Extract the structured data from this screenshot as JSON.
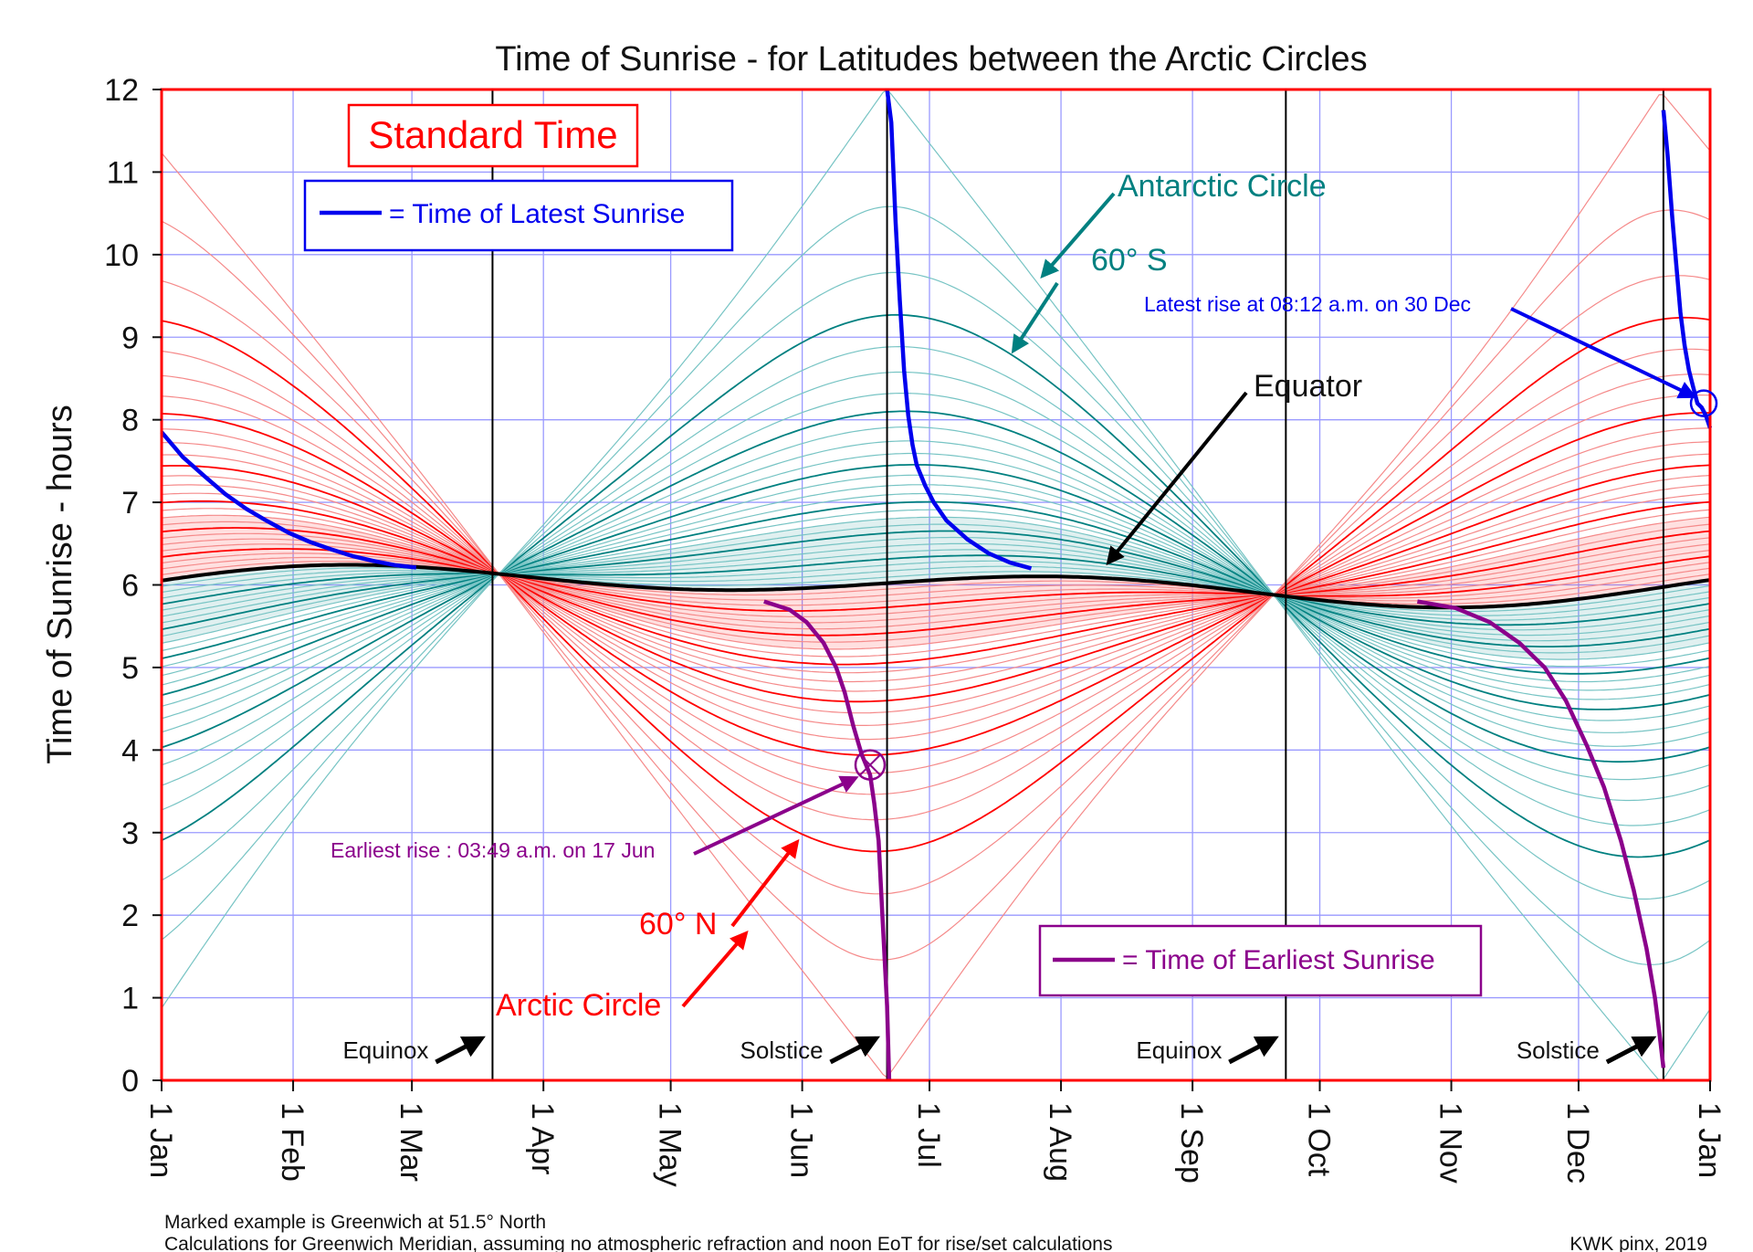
{
  "chart_data": {
    "type": "line",
    "title": "Time of Sunrise - for Latitudes between the Arctic Circles",
    "ylabel": "Time of Sunrise - hours",
    "xlabel": "",
    "ylim": [
      0,
      12
    ],
    "xlim_days": [
      0,
      365
    ],
    "yticks": [
      "0",
      "1",
      "2",
      "3",
      "4",
      "5",
      "6",
      "7",
      "8",
      "9",
      "10",
      "11",
      "12"
    ],
    "xticks": [
      {
        "label": "1 Jan",
        "day": 0
      },
      {
        "label": "1 Feb",
        "day": 31
      },
      {
        "label": "1 Mar",
        "day": 59
      },
      {
        "label": "1 Apr",
        "day": 90
      },
      {
        "label": "1 May",
        "day": 120
      },
      {
        "label": "1 Jun",
        "day": 151
      },
      {
        "label": "1 Jul",
        "day": 181
      },
      {
        "label": "1 Aug",
        "day": 212
      },
      {
        "label": "1 Sep",
        "day": 243
      },
      {
        "label": "1 Oct",
        "day": 273
      },
      {
        "label": "1 Nov",
        "day": 304
      },
      {
        "label": "1 Dec",
        "day": 334
      },
      {
        "label": "1 Jan",
        "day": 365
      }
    ],
    "event_lines": [
      {
        "label": "Equinox",
        "day": 78
      },
      {
        "label": "Solstice",
        "day": 171
      },
      {
        "label": "Equinox",
        "day": 265
      },
      {
        "label": "Solstice",
        "day": 354
      }
    ],
    "latitude_range_deg": [
      -66.56,
      66.56
    ],
    "latitude_step_deg": 2.5,
    "highlighted_latitudes_deg": [
      0,
      60,
      -60,
      66.56,
      -66.56
    ],
    "latest_sunrise_series": {
      "name": "= Time of Latest Sunrise",
      "segments": [
        [
          [
            0,
            7.85
          ],
          [
            5,
            7.55
          ],
          [
            10,
            7.32
          ],
          [
            15,
            7.1
          ],
          [
            20,
            6.92
          ],
          [
            25,
            6.77
          ],
          [
            30,
            6.63
          ],
          [
            35,
            6.52
          ],
          [
            40,
            6.43
          ],
          [
            45,
            6.35
          ],
          [
            50,
            6.29
          ],
          [
            55,
            6.24
          ],
          [
            60,
            6.21
          ]
        ],
        [
          [
            171,
            12
          ],
          [
            172,
            11.6
          ],
          [
            173,
            10.4
          ],
          [
            174,
            9.45
          ],
          [
            175,
            8.6
          ],
          [
            176,
            8.05
          ],
          [
            177,
            7.7
          ],
          [
            178,
            7.45
          ],
          [
            180,
            7.2
          ],
          [
            182,
            7.0
          ],
          [
            185,
            6.78
          ],
          [
            190,
            6.55
          ],
          [
            195,
            6.38
          ],
          [
            200,
            6.27
          ],
          [
            205,
            6.2
          ]
        ],
        [
          [
            354,
            11.75
          ],
          [
            355,
            11.2
          ],
          [
            356,
            10.5
          ],
          [
            357,
            9.9
          ],
          [
            358,
            9.3
          ],
          [
            359,
            8.9
          ],
          [
            360,
            8.6
          ],
          [
            361,
            8.4
          ],
          [
            362,
            8.2
          ],
          [
            363,
            8.15
          ],
          [
            364,
            8.05
          ],
          [
            365,
            7.9
          ]
        ]
      ]
    },
    "earliest_sunrise_series": {
      "name": "= Time of Earliest Sunrise",
      "segments": [
        [
          [
            142,
            5.8
          ],
          [
            148,
            5.7
          ],
          [
            152,
            5.55
          ],
          [
            156,
            5.3
          ],
          [
            159,
            5.0
          ],
          [
            161,
            4.7
          ],
          [
            163,
            4.3
          ],
          [
            165,
            3.95
          ],
          [
            167,
            3.7
          ],
          [
            168,
            3.35
          ],
          [
            169,
            2.9
          ],
          [
            170,
            1.9
          ],
          [
            171,
            0.9
          ],
          [
            171.5,
            0
          ]
        ],
        [
          [
            296,
            5.8
          ],
          [
            305,
            5.72
          ],
          [
            313,
            5.55
          ],
          [
            320,
            5.3
          ],
          [
            326,
            5.0
          ],
          [
            331,
            4.6
          ],
          [
            336,
            4.05
          ],
          [
            340,
            3.55
          ],
          [
            344,
            2.9
          ],
          [
            347,
            2.3
          ],
          [
            350,
            1.6
          ],
          [
            352,
            1.0
          ],
          [
            353,
            0.6
          ],
          [
            354,
            0.15
          ]
        ]
      ]
    },
    "legend": {
      "latest_label": "= Time of Latest Sunrise",
      "earliest_label": "= Time of Earliest Sunrise"
    },
    "annotations": {
      "standard_time": "Standard Time",
      "antarctic_circle": "Antarctic Circle",
      "sixty_s": "60° S",
      "equator": "Equator",
      "latest_rise": "Latest rise at 08:12 a.m. on 30 Dec",
      "latest_point": {
        "day": 363.5,
        "hour": 8.2
      },
      "earliest_rise": "Earliest rise : 03:49 a.m. on 17 Jun",
      "earliest_point": {
        "day": 167,
        "hour": 3.82
      },
      "sixty_n": "60° N",
      "arctic_circle": "Arctic Circle"
    },
    "colors": {
      "north": "#ff0000",
      "north_light": "#f58a8a",
      "south": "#008080",
      "south_light": "#77c4c4",
      "latest": "#0000ee",
      "earliest": "#8b008b",
      "grid": "#9a9aff",
      "frame": "#ff0000"
    }
  },
  "footer": {
    "line1": "Marked example is Greenwich at 51.5° North",
    "line2": "Calculations for Greenwich Meridian, assuming no atmospheric refraction and noon EoT for rise/set calculations",
    "credit": "KWK pinx, 2019"
  }
}
